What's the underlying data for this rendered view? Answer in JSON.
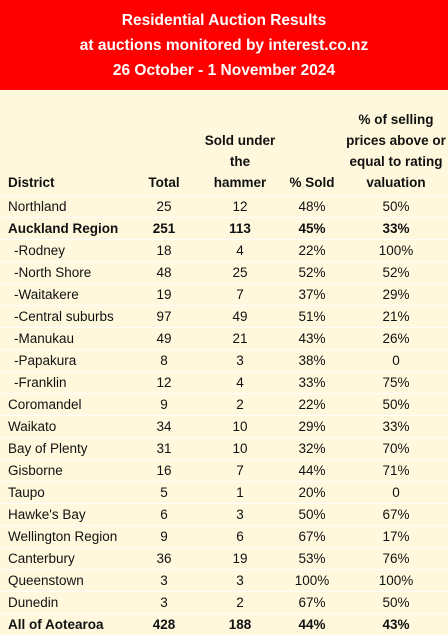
{
  "header": {
    "line1": "Residential Auction Results",
    "line2": "at auctions monitored by interest.co.nz",
    "line3": "26 October - 1 November 2024"
  },
  "columns": {
    "district": "District",
    "total": "Total",
    "sold": "Sold under the hammer",
    "pct_sold": "% Sold",
    "valuation": "% of selling prices above or equal to rating valuation"
  },
  "rows": [
    {
      "district": "Northland",
      "total": "25",
      "sold": "12",
      "pct": "48%",
      "val": "50%",
      "style": "normal"
    },
    {
      "district": "Auckland Region",
      "total": "251",
      "sold": "113",
      "pct": "45%",
      "val": "33%",
      "style": "bold"
    },
    {
      "district": "-Rodney",
      "total": "18",
      "sold": "4",
      "pct": "22%",
      "val": "100%",
      "style": "sub"
    },
    {
      "district": "-North Shore",
      "total": "48",
      "sold": "25",
      "pct": "52%",
      "val": "52%",
      "style": "sub"
    },
    {
      "district": "-Waitakere",
      "total": "19",
      "sold": "7",
      "pct": "37%",
      "val": "29%",
      "style": "sub"
    },
    {
      "district": "-Central suburbs",
      "total": "97",
      "sold": "49",
      "pct": "51%",
      "val": "21%",
      "style": "sub"
    },
    {
      "district": "-Manukau",
      "total": "49",
      "sold": "21",
      "pct": "43%",
      "val": "26%",
      "style": "sub"
    },
    {
      "district": "-Papakura",
      "total": "8",
      "sold": "3",
      "pct": "38%",
      "val": "0",
      "style": "sub"
    },
    {
      "district": "-Franklin",
      "total": "12",
      "sold": "4",
      "pct": "33%",
      "val": "75%",
      "style": "sub"
    },
    {
      "district": "Coromandel",
      "total": "9",
      "sold": "2",
      "pct": "22%",
      "val": "50%",
      "style": "normal"
    },
    {
      "district": "Waikato",
      "total": "34",
      "sold": "10",
      "pct": "29%",
      "val": "33%",
      "style": "normal"
    },
    {
      "district": "Bay of Plenty",
      "total": "31",
      "sold": "10",
      "pct": "32%",
      "val": "70%",
      "style": "normal"
    },
    {
      "district": "Gisborne",
      "total": "16",
      "sold": "7",
      "pct": "44%",
      "val": "71%",
      "style": "normal"
    },
    {
      "district": "Taupo",
      "total": "5",
      "sold": "1",
      "pct": "20%",
      "val": "0",
      "style": "normal"
    },
    {
      "district": "Hawke's Bay",
      "total": "6",
      "sold": "3",
      "pct": "50%",
      "val": "67%",
      "style": "normal"
    },
    {
      "district": "Wellington Region",
      "total": "9",
      "sold": "6",
      "pct": "67%",
      "val": "17%",
      "style": "normal"
    },
    {
      "district": "Canterbury",
      "total": "36",
      "sold": "19",
      "pct": "53%",
      "val": "76%",
      "style": "normal"
    },
    {
      "district": "Queenstown",
      "total": "3",
      "sold": "3",
      "pct": "100%",
      "val": "100%",
      "style": "normal"
    },
    {
      "district": "Dunedin",
      "total": "3",
      "sold": "2",
      "pct": "67%",
      "val": "50%",
      "style": "normal"
    },
    {
      "district": "All of Aotearoa",
      "total": "428",
      "sold": "188",
      "pct": "44%",
      "val": "43%",
      "style": "bold"
    }
  ],
  "colors": {
    "header_bg": "#ff0000",
    "header_text": "#ffffff",
    "table_bg": "#fff8dc"
  }
}
